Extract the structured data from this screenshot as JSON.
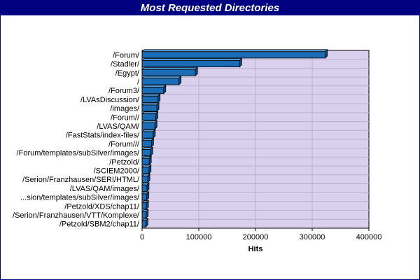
{
  "chart_data": {
    "type": "bar",
    "orientation": "horizontal",
    "title": "Most Requested Directories",
    "xlabel": "Hits",
    "ylabel": "",
    "xlim": [
      0,
      400000
    ],
    "x_ticks": [
      "0",
      "100000",
      "200000",
      "300000",
      "400000"
    ],
    "x_tick_values": [
      0,
      100000,
      200000,
      300000,
      400000
    ],
    "grid": "on",
    "legend": "none",
    "categories": [
      "/Forum/",
      "/Stadler/",
      "/Egypt/",
      "/",
      "/Forum3/",
      "/LVAsDiscussion/",
      "/images/",
      "/Forum//",
      "/LVAS/QAM/",
      "/FastStats/index-files/",
      "/Forum///",
      "/Forum/templates/subSilver/images/",
      "/Petzold/",
      "/SCIEM2000/",
      "/Serion/Franzhausen/SERI/HTML/",
      "/LVAS/QAM/images/",
      "...sion/templates/subSilver/images/",
      "/Petzold/XDS/chap11/",
      "/Serion/Franzhausen/VTT/Komplexe/",
      "/Petzold/SBM2/chap11/"
    ],
    "values": [
      323000,
      172000,
      94000,
      65000,
      38000,
      28000,
      26000,
      24000,
      22500,
      19500,
      16500,
      15000,
      12500,
      12000,
      10000,
      8500,
      8000,
      7500,
      7000,
      6500
    ],
    "colors": {
      "bar": "#1a6cb4",
      "bar_outline": "#000000",
      "plot_background": "#d8d0ec",
      "grid": "#b8b0cc",
      "title_bar": "#000080",
      "title_text": "#ffffff"
    }
  }
}
